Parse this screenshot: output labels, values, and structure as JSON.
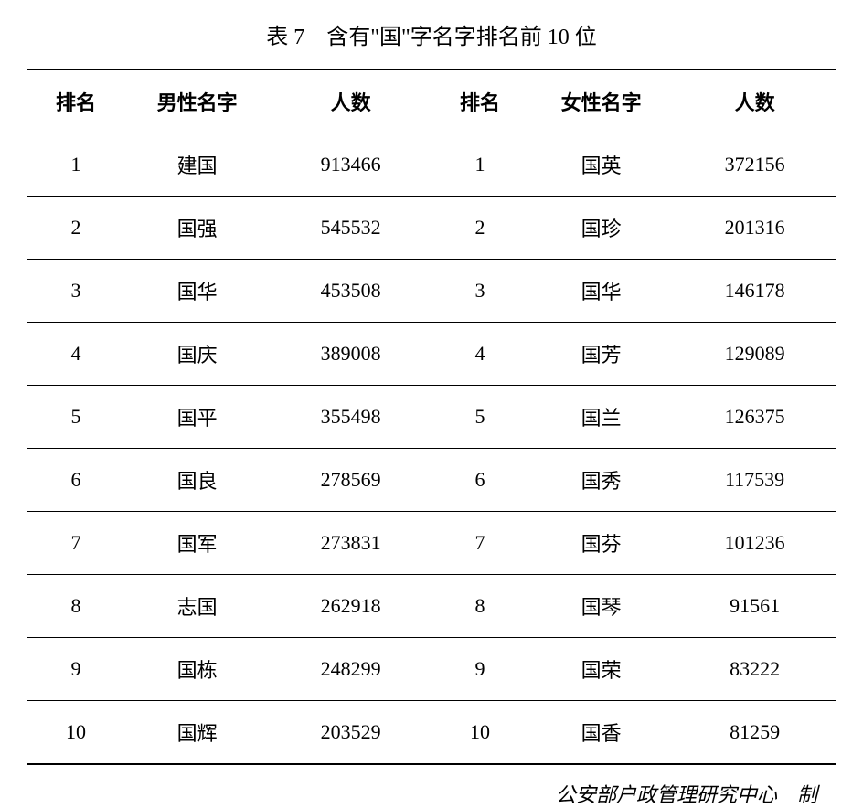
{
  "title": "表 7　含有\"国\"字名字排名前 10 位",
  "columns": {
    "rank_male": "排名",
    "name_male": "男性名字",
    "count_male": "人数",
    "rank_female": "排名",
    "name_female": "女性名字",
    "count_female": "人数"
  },
  "rows": [
    {
      "rank_m": "1",
      "name_m": "建国",
      "count_m": "913466",
      "rank_f": "1",
      "name_f": "国英",
      "count_f": "372156"
    },
    {
      "rank_m": "2",
      "name_m": "国强",
      "count_m": "545532",
      "rank_f": "2",
      "name_f": "国珍",
      "count_f": "201316"
    },
    {
      "rank_m": "3",
      "name_m": "国华",
      "count_m": "453508",
      "rank_f": "3",
      "name_f": "国华",
      "count_f": "146178"
    },
    {
      "rank_m": "4",
      "name_m": "国庆",
      "count_m": "389008",
      "rank_f": "4",
      "name_f": "国芳",
      "count_f": "129089"
    },
    {
      "rank_m": "5",
      "name_m": "国平",
      "count_m": "355498",
      "rank_f": "5",
      "name_f": "国兰",
      "count_f": "126375"
    },
    {
      "rank_m": "6",
      "name_m": "国良",
      "count_m": "278569",
      "rank_f": "6",
      "name_f": "国秀",
      "count_f": "117539"
    },
    {
      "rank_m": "7",
      "name_m": "国军",
      "count_m": "273831",
      "rank_f": "7",
      "name_f": "国芬",
      "count_f": "101236"
    },
    {
      "rank_m": "8",
      "name_m": "志国",
      "count_m": "262918",
      "rank_f": "8",
      "name_f": "国琴",
      "count_f": "91561"
    },
    {
      "rank_m": "9",
      "name_m": "国栋",
      "count_m": "248299",
      "rank_f": "9",
      "name_f": "国荣",
      "count_f": "83222"
    },
    {
      "rank_m": "10",
      "name_m": "国辉",
      "count_m": "203529",
      "rank_f": "10",
      "name_f": "国香",
      "count_f": "81259"
    }
  ],
  "footer": "公安部户政管理研究中心　制",
  "styling": {
    "background_color": "#ffffff",
    "text_color": "#000000",
    "border_color": "#000000",
    "title_fontsize": 24,
    "table_fontsize": 22,
    "footer_fontsize": 22,
    "header_border_top_width": 2,
    "header_border_bottom_width": 1.5,
    "row_border_width": 1,
    "last_row_border_width": 2,
    "cell_padding_vertical": 18,
    "cell_padding_horizontal": 8,
    "column_widths": {
      "rank": "12%",
      "name": "18%",
      "count": "20%"
    }
  }
}
